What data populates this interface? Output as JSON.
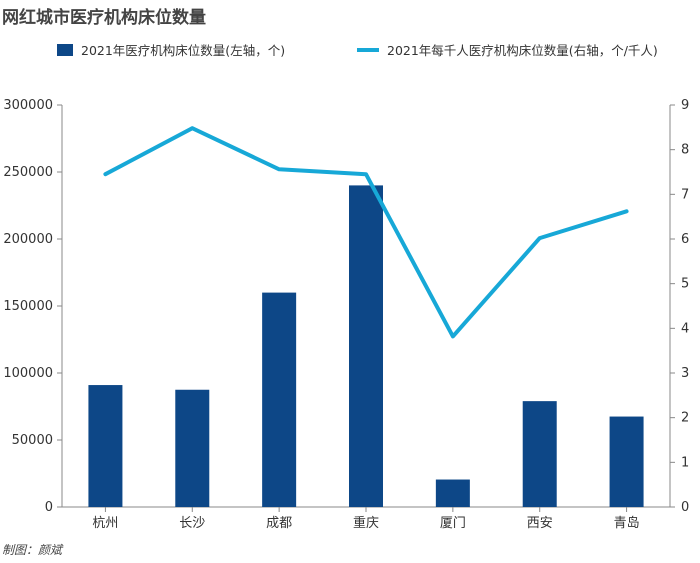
{
  "title": "网红城市医疗机构床位数量",
  "credit": "制图：颜斌",
  "colors": {
    "bar": "#0d4787",
    "line": "#17a8d7",
    "axis": "#888888",
    "text": "#333333"
  },
  "chart_data": {
    "type": "bar",
    "categories": [
      "杭州",
      "长沙",
      "成都",
      "重庆",
      "厦门",
      "西安",
      "青岛"
    ],
    "series": [
      {
        "name": "2021年医疗机构床位数量(左轴，个)",
        "type": "bar",
        "axis": "left",
        "values": [
          91000,
          87500,
          160000,
          240000,
          20500,
          79000,
          67500
        ]
      },
      {
        "name": "2021年每千人医疗机构床位数量(右轴，个/千人)",
        "type": "line",
        "axis": "right",
        "values": [
          7.45,
          8.48,
          7.56,
          7.45,
          3.82,
          6.02,
          6.62
        ]
      }
    ],
    "left_axis": {
      "ylim": [
        0,
        300000
      ],
      "ticks": [
        "0",
        "50000",
        "100000",
        "150000",
        "200000",
        "250000",
        "300000"
      ]
    },
    "right_axis": {
      "ylim": [
        0,
        9
      ],
      "ticks": [
        "0",
        "1",
        "2",
        "3",
        "4",
        "5",
        "6",
        "7",
        "8",
        "9"
      ]
    },
    "legend": "top",
    "grid": false
  }
}
